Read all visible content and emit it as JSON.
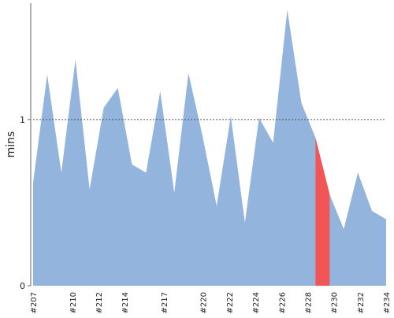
{
  "chart_data": {
    "type": "area",
    "xlabel": "",
    "ylabel": "mins",
    "ylim": [
      0,
      1.7
    ],
    "yticks": [
      0,
      1
    ],
    "reference_line": {
      "y": 1,
      "style": "dotted"
    },
    "x_tick_labels": [
      "#207",
      "#210",
      "#212",
      "#214",
      "#217",
      "#220",
      "#222",
      "#224",
      "#226",
      "#228",
      "#230",
      "#232",
      "#234"
    ],
    "points": [
      {
        "x": 0,
        "y": 0.62
      },
      {
        "x": 1,
        "y": 1.27
      },
      {
        "x": 2,
        "y": 0.68
      },
      {
        "x": 3,
        "y": 1.36
      },
      {
        "x": 4,
        "y": 0.58
      },
      {
        "x": 5,
        "y": 1.07
      },
      {
        "x": 6,
        "y": 1.19
      },
      {
        "x": 7,
        "y": 0.73
      },
      {
        "x": 8,
        "y": 0.68
      },
      {
        "x": 9,
        "y": 1.17
      },
      {
        "x": 10,
        "y": 0.56
      },
      {
        "x": 11,
        "y": 1.28
      },
      {
        "x": 12,
        "y": 0.9
      },
      {
        "x": 13,
        "y": 0.48
      },
      {
        "x": 14,
        "y": 1.02
      },
      {
        "x": 15,
        "y": 0.38
      },
      {
        "x": 16,
        "y": 1.01
      },
      {
        "x": 17,
        "y": 0.86
      },
      {
        "x": 18,
        "y": 1.66
      },
      {
        "x": 19,
        "y": 1.1
      },
      {
        "x": 20,
        "y": 0.89
      },
      {
        "x": 21,
        "y": 0.55
      },
      {
        "x": 22,
        "y": 0.34
      },
      {
        "x": 23,
        "y": 0.68
      },
      {
        "x": 24,
        "y": 0.45
      },
      {
        "x": 25,
        "y": 0.4
      }
    ],
    "highlight": {
      "from": 20,
      "to": 21,
      "color": "#f25555"
    },
    "colors": {
      "area": "#92b4dd",
      "highlight": "#f25555",
      "axis": "#666666",
      "reference": "#555555"
    }
  }
}
